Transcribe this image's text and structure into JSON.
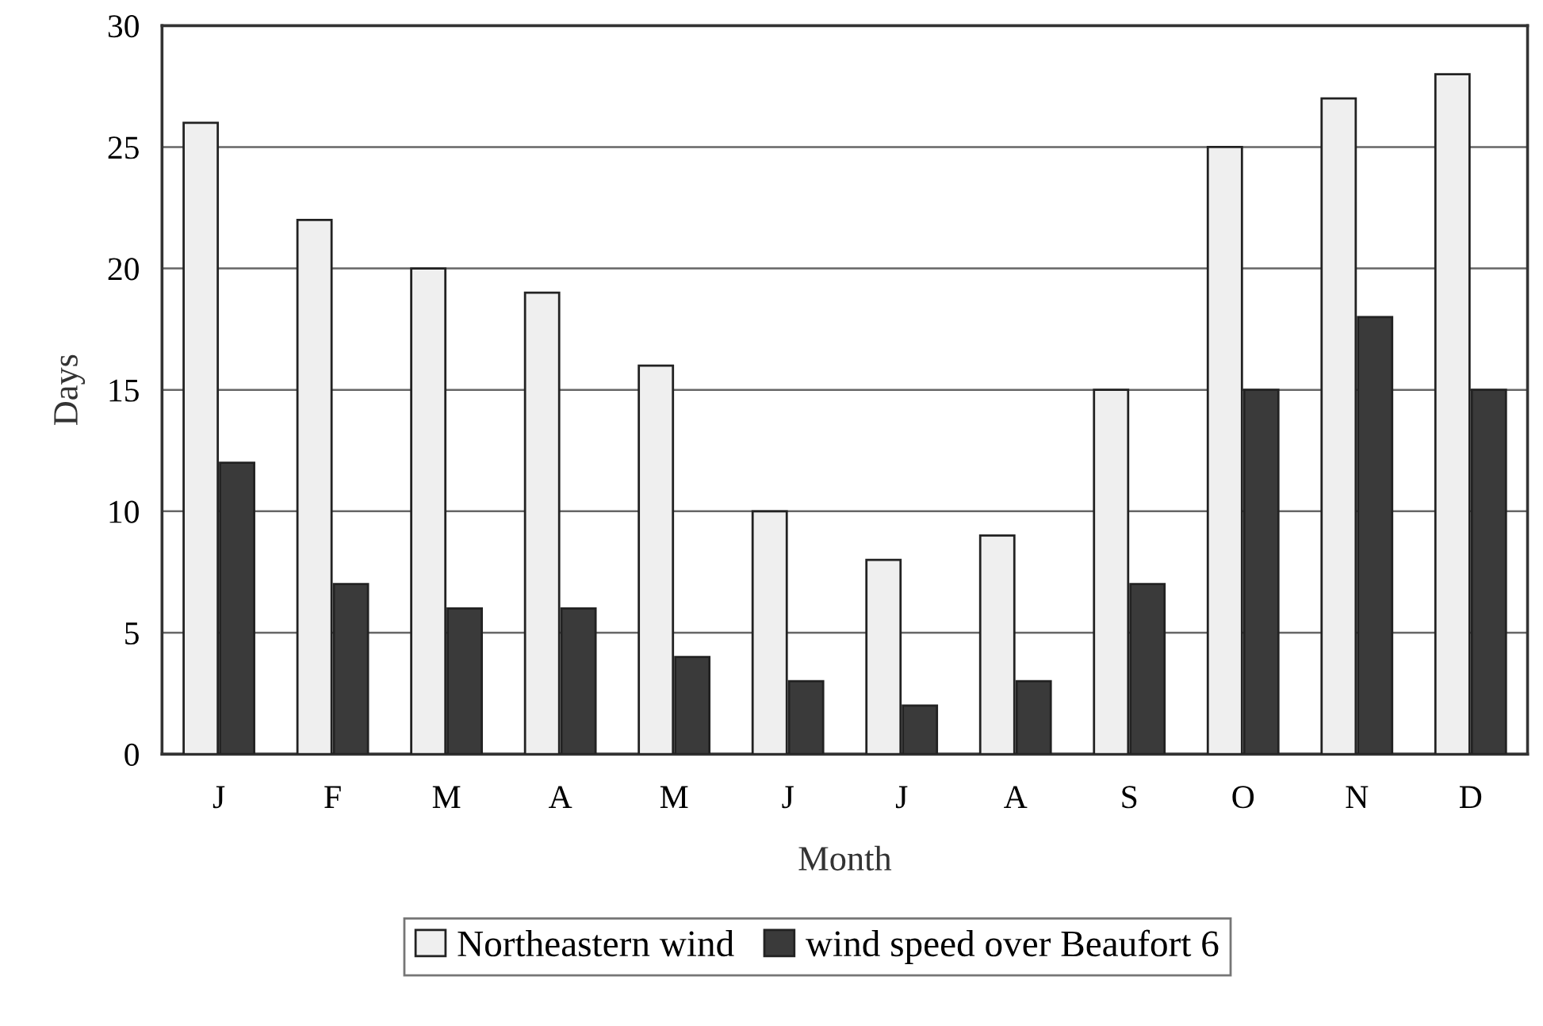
{
  "chart_data": {
    "type": "bar",
    "xlabel": "Month",
    "ylabel": "Days",
    "categories": [
      "J",
      "F",
      "M",
      "A",
      "M",
      "J",
      "J",
      "A",
      "S",
      "O",
      "N",
      "D"
    ],
    "series": [
      {
        "name": "Northeastern wind",
        "color": "#efefef",
        "values": [
          26,
          22,
          20,
          19,
          16,
          10,
          8,
          9,
          15,
          25,
          27,
          28
        ]
      },
      {
        "name": "wind speed over Beaufort 6",
        "color": "#3a3a3a",
        "values": [
          12,
          7,
          6,
          6,
          4,
          3,
          2,
          3,
          7,
          15,
          18,
          15
        ]
      }
    ],
    "ylim": [
      0,
      30
    ],
    "yticks": [
      0,
      5,
      10,
      15,
      20,
      25,
      30
    ],
    "grid": "y",
    "legend": "bottom"
  }
}
